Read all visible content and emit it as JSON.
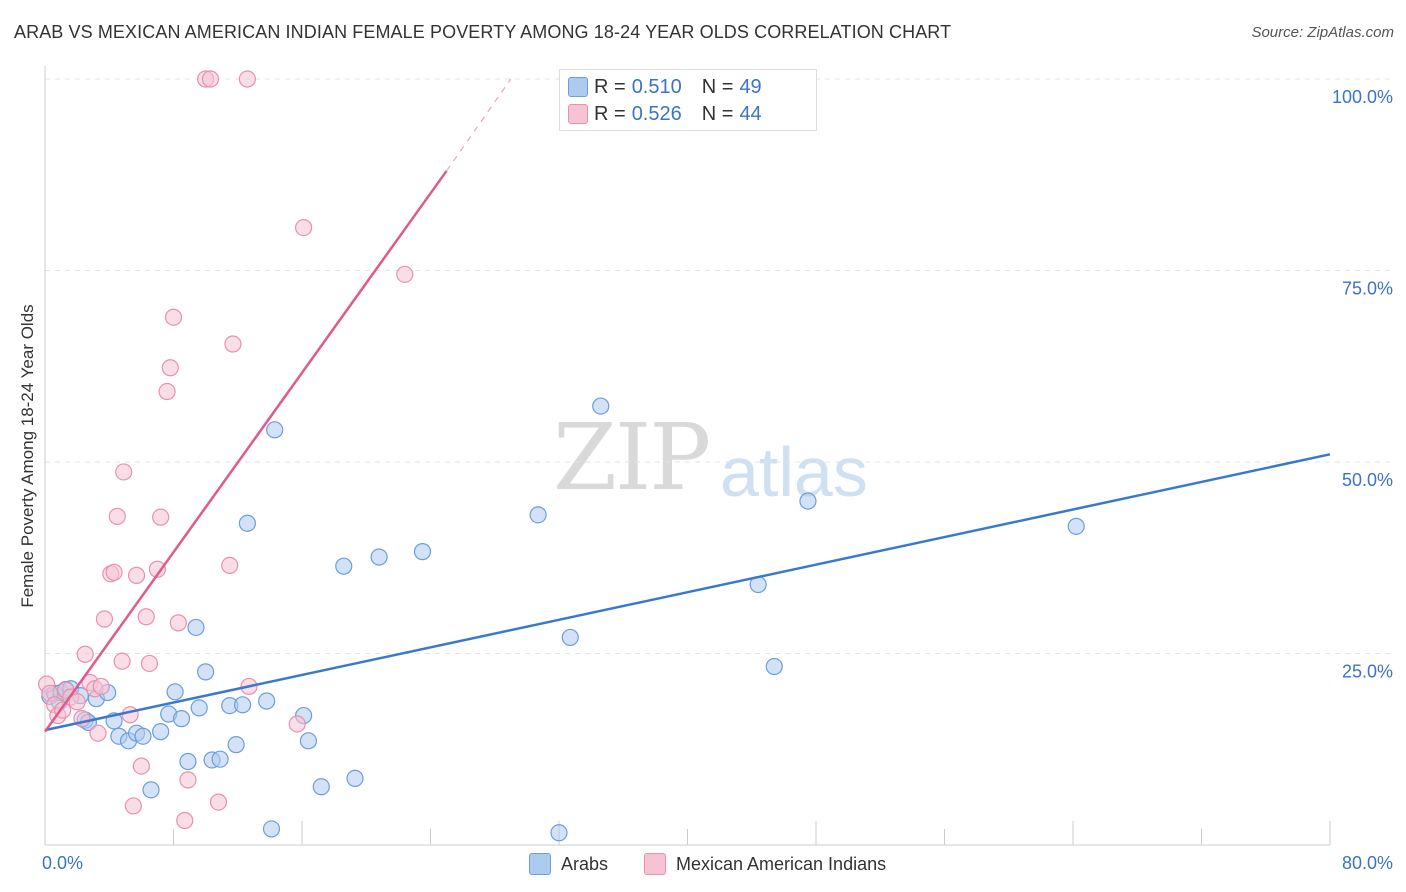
{
  "title": "ARAB VS MEXICAN AMERICAN INDIAN FEMALE POVERTY AMONG 18-24 YEAR OLDS CORRELATION CHART",
  "source": "Source: ZipAtlas.com",
  "watermark": {
    "zip": "ZIP",
    "atlas": "atlas"
  },
  "legend": {
    "rows": [
      {
        "r_label": "R = ",
        "r_value": "0.510",
        "n_label": "N = ",
        "n_value": "49"
      },
      {
        "r_label": "R = ",
        "r_value": "0.526",
        "n_label": "N = ",
        "n_value": "44"
      }
    ]
  },
  "bottom_legend": [
    "Arabs",
    "Mexican American Indians"
  ],
  "chart_data": {
    "type": "scatter",
    "title": "ARAB VS MEXICAN AMERICAN INDIAN FEMALE POVERTY AMONG 18-24 YEAR OLDS CORRELATION CHART",
    "xlabel": "",
    "ylabel": "Female Poverty Among 18-24 Year Olds",
    "xlim": [
      0,
      80
    ],
    "ylim": [
      0,
      100
    ],
    "x_tick_labels": [
      "0.0%",
      "80.0%"
    ],
    "y_ticks": [
      25,
      50,
      75,
      100
    ],
    "y_tick_labels": [
      "25.0%",
      "50.0%",
      "75.0%",
      "100.0%"
    ],
    "grid": true,
    "legend_placement": "top-center",
    "series": [
      {
        "name": "Arabs",
        "color": "#6a9fdc",
        "fill": "#aecbef",
        "line_color": "#3a78cf",
        "r": 0.51,
        "n": 49,
        "trend": {
          "x0": 0,
          "y0": 15.0,
          "x1": 80,
          "y1": 51.0
        },
        "points": [
          [
            0.3,
            19.4
          ],
          [
            0.6,
            19.8
          ],
          [
            0.9,
            18.7
          ],
          [
            1.0,
            19.9
          ],
          [
            1.3,
            20.3
          ],
          [
            1.6,
            20.4
          ],
          [
            2.2,
            19.5
          ],
          [
            2.5,
            16.3
          ],
          [
            2.7,
            16.0
          ],
          [
            3.2,
            19.1
          ],
          [
            3.9,
            19.9
          ],
          [
            4.3,
            16.2
          ],
          [
            4.6,
            14.2
          ],
          [
            5.2,
            13.6
          ],
          [
            5.7,
            14.6
          ],
          [
            6.1,
            14.2
          ],
          [
            6.6,
            7.2
          ],
          [
            7.2,
            14.8
          ],
          [
            7.7,
            17.1
          ],
          [
            8.1,
            20.0
          ],
          [
            8.5,
            16.5
          ],
          [
            8.9,
            10.9
          ],
          [
            9.4,
            28.4
          ],
          [
            9.6,
            17.9
          ],
          [
            10.0,
            22.6
          ],
          [
            10.4,
            11.1
          ],
          [
            10.9,
            11.2
          ],
          [
            11.5,
            18.2
          ],
          [
            11.9,
            13.1
          ],
          [
            12.3,
            18.3
          ],
          [
            12.6,
            42.0
          ],
          [
            13.8,
            18.8
          ],
          [
            14.1,
            2.1
          ],
          [
            14.3,
            54.2
          ],
          [
            16.1,
            16.9
          ],
          [
            16.4,
            13.6
          ],
          [
            17.2,
            7.6
          ],
          [
            18.6,
            36.4
          ],
          [
            19.3,
            8.7
          ],
          [
            20.8,
            37.6
          ],
          [
            23.5,
            38.3
          ],
          [
            30.7,
            43.1
          ],
          [
            32.0,
            1.6
          ],
          [
            32.7,
            27.1
          ],
          [
            34.6,
            57.3
          ],
          [
            44.4,
            34.0
          ],
          [
            45.4,
            23.3
          ],
          [
            47.5,
            44.9
          ],
          [
            64.2,
            41.6
          ]
        ]
      },
      {
        "name": "Mexican American Indians",
        "color": "#e891ad",
        "fill": "#f6c3d3",
        "line_color": "#e05a8a",
        "r": 0.526,
        "n": 44,
        "trend": {
          "x0": 0,
          "y0": 14.8,
          "x1": 25,
          "y1": 88.0,
          "dashed_to": {
            "x": 29,
            "y": 100
          }
        },
        "points": [
          [
            0.1,
            21.0
          ],
          [
            0.3,
            19.8
          ],
          [
            0.6,
            18.3
          ],
          [
            0.8,
            16.9
          ],
          [
            1.1,
            17.6
          ],
          [
            1.3,
            20.2
          ],
          [
            1.6,
            19.3
          ],
          [
            2.0,
            18.7
          ],
          [
            2.3,
            16.5
          ],
          [
            2.5,
            24.9
          ],
          [
            2.8,
            21.2
          ],
          [
            3.1,
            20.4
          ],
          [
            3.3,
            14.6
          ],
          [
            3.5,
            20.7
          ],
          [
            3.7,
            29.5
          ],
          [
            4.1,
            35.4
          ],
          [
            4.3,
            35.6
          ],
          [
            4.5,
            42.9
          ],
          [
            4.8,
            24.0
          ],
          [
            4.9,
            48.7
          ],
          [
            5.3,
            17.0
          ],
          [
            5.5,
            5.1
          ],
          [
            5.7,
            35.2
          ],
          [
            6.0,
            10.3
          ],
          [
            6.3,
            29.8
          ],
          [
            6.5,
            23.7
          ],
          [
            7.0,
            36.0
          ],
          [
            7.2,
            42.8
          ],
          [
            7.6,
            59.2
          ],
          [
            7.8,
            62.3
          ],
          [
            8.0,
            68.9
          ],
          [
            8.3,
            29.0
          ],
          [
            8.7,
            3.2
          ],
          [
            8.9,
            8.5
          ],
          [
            10.0,
            100
          ],
          [
            10.3,
            100
          ],
          [
            10.8,
            5.6
          ],
          [
            11.5,
            36.5
          ],
          [
            11.7,
            65.4
          ],
          [
            12.6,
            100
          ],
          [
            12.7,
            20.7
          ],
          [
            15.7,
            15.8
          ],
          [
            16.1,
            80.6
          ],
          [
            22.4,
            74.5
          ]
        ]
      }
    ]
  }
}
